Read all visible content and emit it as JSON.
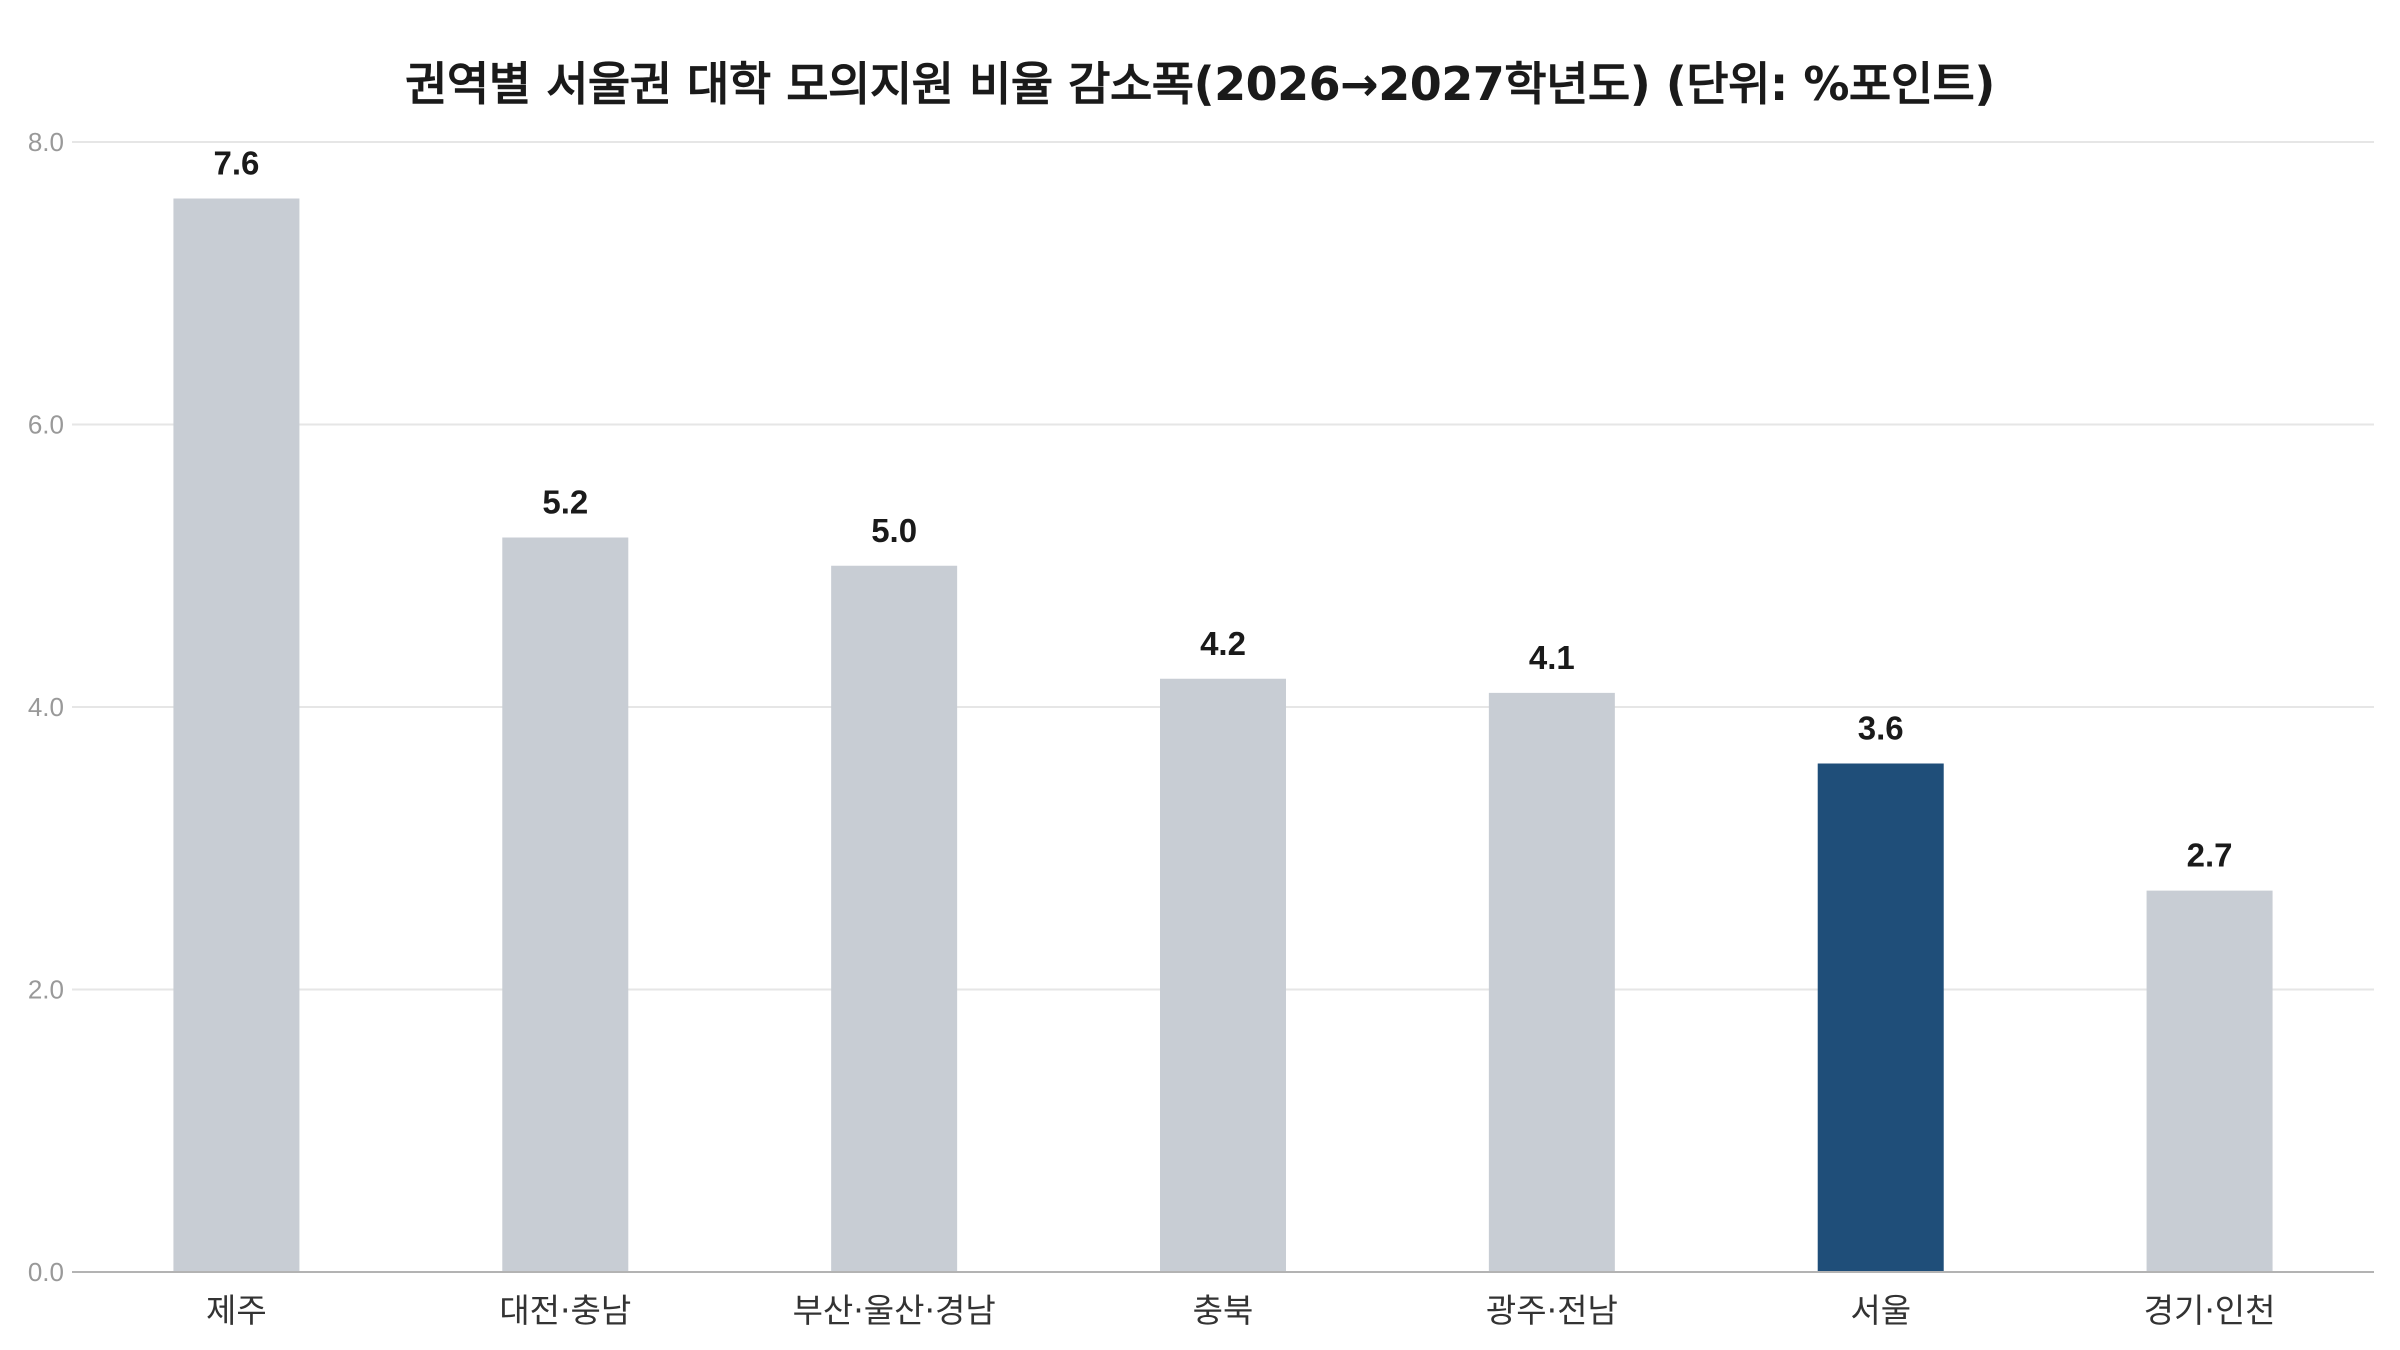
{
  "chart_data": {
    "type": "bar",
    "title": "권역별 서울권 대학 모의지원 비율 감소폭(2026→2027학년도) (단위: %포인트)",
    "xlabel": "",
    "ylabel": "",
    "categories": [
      "제주",
      "대전·충남",
      "부산·울산·경남",
      "충북",
      "광주·전남",
      "서울",
      "경기·인천"
    ],
    "values": [
      7.6,
      5.2,
      5.0,
      4.2,
      4.1,
      3.6,
      2.7
    ],
    "value_labels": [
      "7.6",
      "5.2",
      "5.0",
      "4.2",
      "4.1",
      "3.6",
      "2.7"
    ],
    "highlight": "서울",
    "ylim": [
      0,
      8
    ],
    "yticks": [
      0,
      2,
      4,
      6,
      8
    ],
    "ytick_labels": [
      "0.0",
      "2.0",
      "4.0",
      "6.0",
      "8.0"
    ],
    "grid": true,
    "legend": "none",
    "colors": {
      "default_bar": "#c8cdd4",
      "highlight_bar": "#1f4e79",
      "grid": "#e6e6e6",
      "axis": "#b3b3b3"
    }
  }
}
